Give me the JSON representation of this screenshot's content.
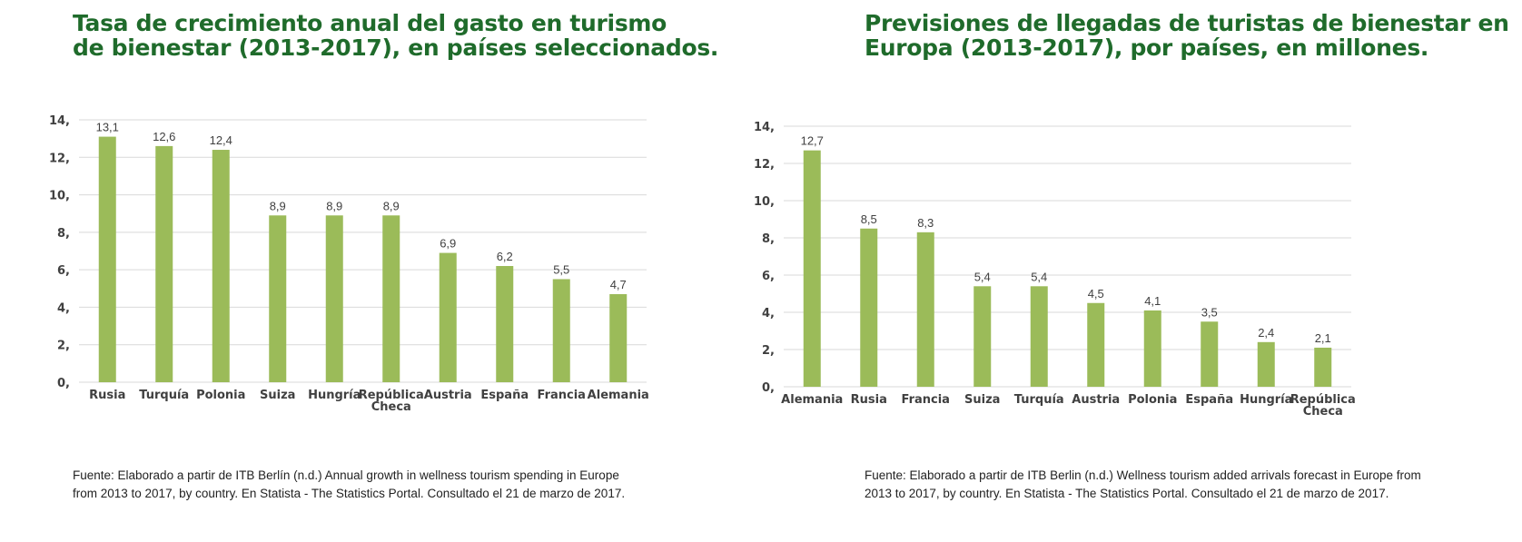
{
  "colors": {
    "bar": "#9bbb59",
    "title": "#1f6b2b",
    "grid": "#d9d9d9"
  },
  "left": {
    "title_lines": [
      "Tasa de crecimiento anual del gasto en turismo",
      "de bienestar (2013-2017), en países seleccionados."
    ],
    "source_text": "Fuente: Elaborado a partir de ITB Berlín (n.d.) Annual growth in wellness tourism spending in Europe from 2013 to 2017, by country. En Statista - The Statistics Portal. Consultado el 21 de marzo de 2017."
  },
  "right": {
    "title_lines": [
      "Previsiones de llegadas de turistas de bienestar en",
      "Europa (2013-2017), por países, en millones."
    ],
    "source_text": "Fuente: Elaborado a partir de ITB Berlin (n.d.) Wellness tourism added arrivals forecast in Europe from 2013 to 2017, by country. En Statista - The Statistics Portal. Consultado el 21 de marzo de 2017."
  },
  "chart_data": [
    {
      "type": "bar",
      "title": "Tasa de crecimiento anual del gasto en turismo de bienestar (2013-2017), en países seleccionados.",
      "categories": [
        "Rusia",
        "Turquía",
        "Polonia",
        "Suiza",
        "Hungría",
        "República Checa",
        "Austria",
        "España",
        "Francia",
        "Alemania"
      ],
      "values": [
        13.1,
        12.6,
        12.4,
        8.9,
        8.9,
        8.9,
        6.9,
        6.2,
        5.5,
        4.7
      ],
      "value_labels": [
        "13,1",
        "12,6",
        "12,4",
        "8,9",
        "8,9",
        "8,9",
        "6,9",
        "6,2",
        "5,5",
        "4,7"
      ],
      "yticks": [
        0,
        2,
        4,
        6,
        8,
        10,
        12,
        14
      ],
      "ytick_labels": [
        "0,",
        "2,",
        "4,",
        "6,",
        "8,",
        "10,",
        "12,",
        "14,"
      ],
      "ylim": [
        0,
        14
      ],
      "grid": true,
      "legend": "none"
    },
    {
      "type": "bar",
      "title": "Previsiones de llegadas de turistas de bienestar en Europa (2013-2017), por países, en millones.",
      "categories": [
        "Alemania",
        "Rusia",
        "Francia",
        "Suiza",
        "Turquía",
        "Austria",
        "Polonia",
        "España",
        "Hungría",
        "República Checa"
      ],
      "values": [
        12.7,
        8.5,
        8.3,
        5.4,
        5.4,
        4.5,
        4.1,
        3.5,
        2.4,
        2.1
      ],
      "value_labels": [
        "12,7",
        "8,5",
        "8,3",
        "5,4",
        "5,4",
        "4,5",
        "4,1",
        "3,5",
        "2,4",
        "2,1"
      ],
      "yticks": [
        0,
        2,
        4,
        6,
        8,
        10,
        12,
        14
      ],
      "ytick_labels": [
        "0,",
        "2,",
        "4,",
        "6,",
        "8,",
        "10,",
        "12,",
        "14,"
      ],
      "ylim": [
        0,
        14
      ],
      "grid": true,
      "legend": "none"
    }
  ]
}
